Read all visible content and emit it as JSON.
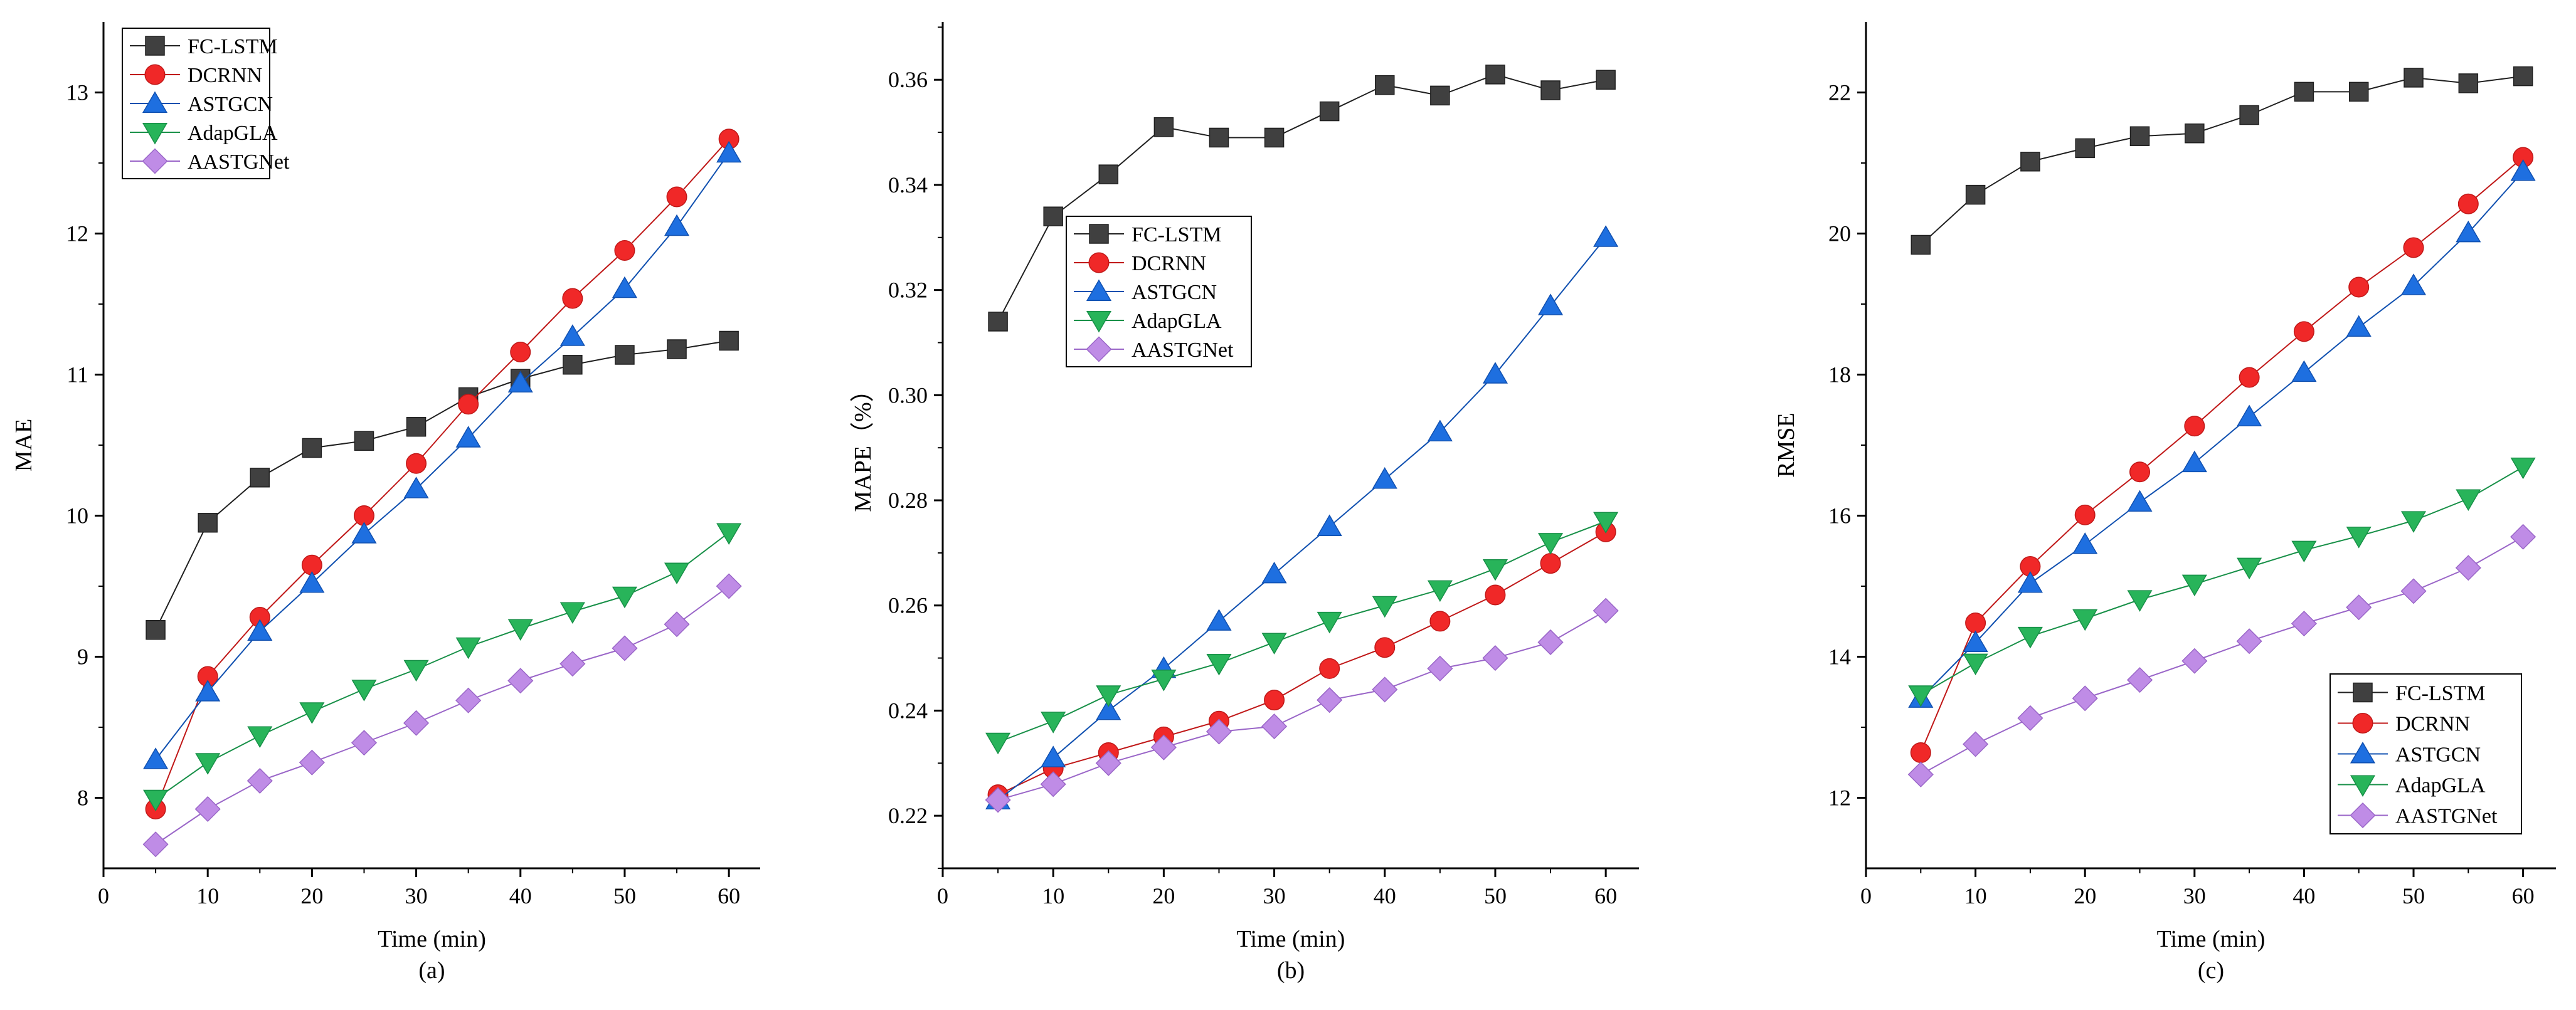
{
  "colors": {
    "axis": "#000000",
    "series": [
      "#404040",
      "#f02828",
      "#1e6fe0",
      "#28b45a",
      "#bf8ce6"
    ],
    "series_stroke": [
      "#202020",
      "#c01818",
      "#1050b0",
      "#189048",
      "#9a66c8"
    ]
  },
  "markers": [
    "square",
    "circle",
    "triangle-up",
    "triangle-down",
    "diamond"
  ],
  "chart_data": [
    {
      "type": "line",
      "panel_label": "(a)",
      "xlabel": "Time (min)",
      "ylabel": "MAE",
      "xlim": [
        0,
        63
      ],
      "ylim": [
        7.5,
        13.5
      ],
      "xticks": [
        0,
        10,
        20,
        30,
        40,
        50,
        60
      ],
      "yticks": [
        8,
        9,
        10,
        11,
        12,
        13
      ],
      "legend_position": "top-left",
      "x": [
        5,
        10,
        15,
        20,
        25,
        30,
        35,
        40,
        45,
        50,
        55,
        60
      ],
      "series": [
        {
          "name": "FC-LSTM",
          "values": [
            9.19,
            9.95,
            10.27,
            10.48,
            10.53,
            10.63,
            10.84,
            10.97,
            11.07,
            11.14,
            11.18,
            11.24
          ]
        },
        {
          "name": "DCRNN",
          "values": [
            7.92,
            8.86,
            9.28,
            9.65,
            10.0,
            10.37,
            10.79,
            11.16,
            11.54,
            11.88,
            12.26,
            12.67
          ]
        },
        {
          "name": "ASTGCN",
          "values": [
            8.27,
            8.75,
            9.18,
            9.52,
            9.87,
            10.19,
            10.55,
            10.94,
            11.27,
            11.61,
            12.05,
            12.57
          ]
        },
        {
          "name": "AdapGLA",
          "values": [
            7.99,
            8.25,
            8.44,
            8.61,
            8.77,
            8.91,
            9.07,
            9.2,
            9.32,
            9.43,
            9.6,
            9.88
          ]
        },
        {
          "name": "AASTGNet",
          "values": [
            7.67,
            7.92,
            8.12,
            8.25,
            8.39,
            8.53,
            8.69,
            8.83,
            8.95,
            9.06,
            9.23,
            9.5
          ]
        }
      ]
    },
    {
      "type": "line",
      "panel_label": "(b)",
      "xlabel": "Time (min)",
      "ylabel": "MAPE（%）",
      "xlim": [
        0,
        63
      ],
      "ylim": [
        0.21,
        0.371
      ],
      "xticks": [
        0,
        10,
        20,
        30,
        40,
        50,
        60
      ],
      "yticks": [
        0.22,
        0.24,
        0.26,
        0.28,
        0.3,
        0.32,
        0.34,
        0.36
      ],
      "legend_position": "upper-left",
      "x": [
        5,
        10,
        15,
        20,
        25,
        30,
        35,
        40,
        45,
        50,
        55,
        60
      ],
      "series": [
        {
          "name": "FC-LSTM",
          "values": [
            0.314,
            0.334,
            0.342,
            0.351,
            0.349,
            0.349,
            0.354,
            0.359,
            0.357,
            0.361,
            0.358,
            0.36
          ]
        },
        {
          "name": "DCRNN",
          "values": [
            0.224,
            0.229,
            0.232,
            0.235,
            0.238,
            0.242,
            0.248,
            0.252,
            0.257,
            0.262,
            0.268,
            0.274
          ]
        },
        {
          "name": "ASTGCN",
          "values": [
            0.223,
            0.231,
            0.24,
            0.248,
            0.257,
            0.266,
            0.275,
            0.284,
            0.293,
            0.304,
            0.317,
            0.33
          ]
        },
        {
          "name": "AdapGLA",
          "values": [
            0.234,
            0.238,
            0.243,
            0.246,
            0.249,
            0.253,
            0.257,
            0.26,
            0.263,
            0.267,
            0.272,
            0.276
          ]
        },
        {
          "name": "AASTGNet",
          "values": [
            0.223,
            0.226,
            0.23,
            0.233,
            0.236,
            0.237,
            0.242,
            0.244,
            0.248,
            0.25,
            0.253,
            0.259
          ]
        }
      ]
    },
    {
      "type": "line",
      "panel_label": "(c)",
      "xlabel": "Time (min)",
      "ylabel": "RMSE",
      "xlim": [
        0,
        63
      ],
      "ylim": [
        11,
        23
      ],
      "xticks": [
        0,
        10,
        20,
        30,
        40,
        50,
        60
      ],
      "yticks": [
        12,
        14,
        16,
        18,
        20,
        22
      ],
      "legend_position": "bottom-right",
      "x": [
        5,
        10,
        15,
        20,
        25,
        30,
        35,
        40,
        45,
        50,
        55,
        60
      ],
      "series": [
        {
          "name": "FC-LSTM",
          "values": [
            19.84,
            20.55,
            21.02,
            21.21,
            21.38,
            21.42,
            21.68,
            22.01,
            22.01,
            22.21,
            22.13,
            22.23
          ]
        },
        {
          "name": "DCRNN",
          "values": [
            12.64,
            14.48,
            15.28,
            16.01,
            16.62,
            17.27,
            17.96,
            18.61,
            19.24,
            19.8,
            20.42,
            21.08
          ]
        },
        {
          "name": "ASTGCN",
          "values": [
            13.41,
            14.2,
            15.04,
            15.59,
            16.19,
            16.75,
            17.4,
            18.03,
            18.67,
            19.26,
            20.01,
            20.88
          ]
        },
        {
          "name": "AdapGLA",
          "values": [
            13.46,
            13.91,
            14.29,
            14.54,
            14.81,
            15.03,
            15.27,
            15.51,
            15.71,
            15.93,
            16.24,
            16.69
          ]
        },
        {
          "name": "AASTGNet",
          "values": [
            12.33,
            12.76,
            13.13,
            13.41,
            13.67,
            13.94,
            14.22,
            14.47,
            14.7,
            14.93,
            15.26,
            15.7
          ]
        }
      ]
    }
  ]
}
